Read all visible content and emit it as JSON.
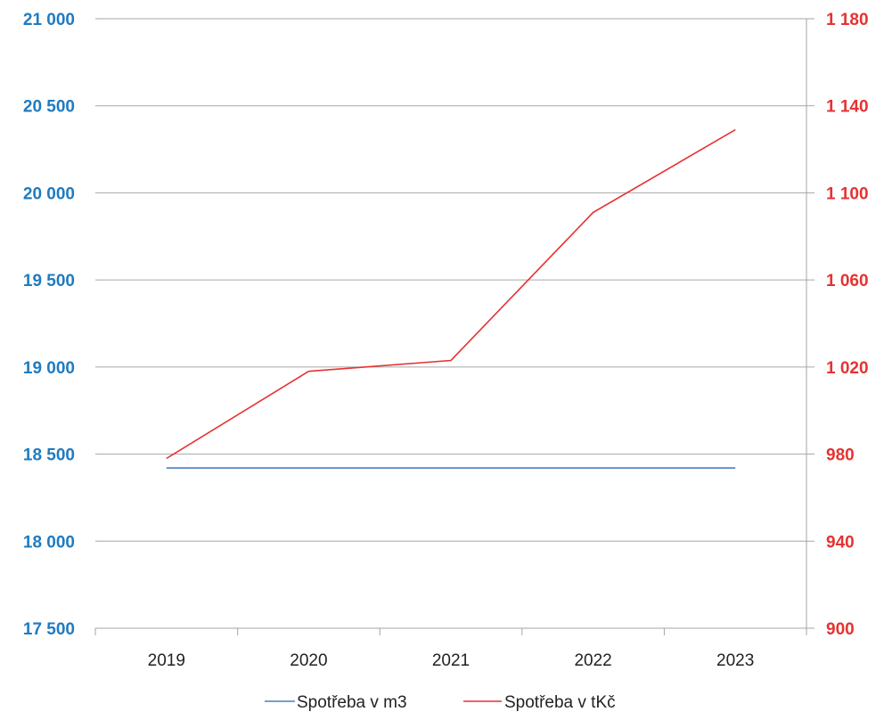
{
  "chart_data": {
    "type": "line",
    "title": "",
    "xlabel": "",
    "ylabel": "",
    "categories": [
      "2019",
      "2020",
      "2021",
      "2022",
      "2023"
    ],
    "y_left": {
      "lim": [
        17500,
        21000
      ],
      "ticks": [
        17500,
        18000,
        18500,
        19000,
        19500,
        20000,
        20500,
        21000
      ],
      "tick_labels": [
        "17 500",
        "18 000",
        "18 500",
        "19 000",
        "19 500",
        "20 000",
        "20 500",
        "21 000"
      ],
      "color": "#1f7bc0"
    },
    "y_right": {
      "lim": [
        900,
        1180
      ],
      "ticks": [
        900,
        940,
        980,
        1020,
        1060,
        1100,
        1140,
        1180
      ],
      "tick_labels": [
        "900",
        "940",
        "980",
        "1 020",
        "1 060",
        "1 100",
        "1 140",
        "1 180"
      ],
      "color": "#e63232"
    },
    "series": [
      {
        "name": "Spotřeba v m3",
        "axis": "left",
        "color": "#4a7fc1",
        "values": [
          18420,
          18420,
          18420,
          18420,
          18420
        ]
      },
      {
        "name": "Spotřeba v tKč",
        "axis": "right",
        "color": "#e63232",
        "values": [
          978,
          1018,
          1023,
          1091,
          1129
        ]
      }
    ],
    "grid": true,
    "legend_position": "bottom"
  }
}
